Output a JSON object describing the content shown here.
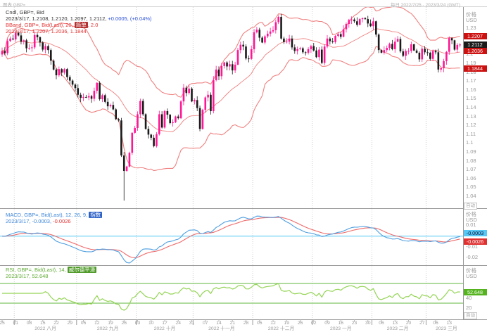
{
  "header": {
    "left_title": "图表 GBP=",
    "right_range": "每日 2022/7/25 - 2023/3/24 (GMT)"
  },
  "legends": {
    "main": {
      "line1": "Cndl, GBP=, Bid",
      "line2_ohlc": "2023/3/17, 1.2108, 1.2120, 1.2097, 1.2112, ",
      "line2_change": "+0.0005, (+0.04%)",
      "line3_pre": "BBand, GBP=, Bid(Last), 20, ",
      "line3_hl": "简单",
      "line3_post": ", 2.0",
      "line4": "2023/3/17, 1.2207, 1.2036, 1.1844"
    },
    "macd": {
      "line1_pre": "MACD, GBP=, Bid(Last), 12, 26, 9, ",
      "line1_hl": "指数",
      "line2_val1": "2023/3/17, -0.0003, ",
      "line2_val2": "-0.0026"
    },
    "rsi": {
      "line1_pre": "RSI, GBP=, Bid(Last), 14, ",
      "line1_hl": "威尔德平滑",
      "line2": "2023/3/17, 52.648"
    }
  },
  "axis": {
    "price_label": "价格",
    "unit": "USD",
    "auto_label": "自动",
    "price_badges": [
      {
        "value": "1.2207",
        "bg": "#cc1111",
        "fg": "#fff",
        "name": "bollinger-upper-badge"
      },
      {
        "value": "1.2112",
        "bg": "#1a1a1a",
        "fg": "#fff",
        "name": "last-price-badge"
      },
      {
        "value": "1.2036",
        "bg": "#cc1111",
        "fg": "#fff",
        "name": "bollinger-middle-badge"
      },
      {
        "value": "1.1844",
        "bg": "#cc1111",
        "fg": "#fff",
        "name": "bollinger-lower-badge"
      }
    ],
    "macd_badges": [
      {
        "value": "-0.0003",
        "bg": "#55c8f5",
        "fg": "#113",
        "name": "macd-line-badge"
      },
      {
        "value": "-0.0026",
        "bg": "#e03030",
        "fg": "#fff",
        "name": "macd-signal-badge"
      }
    ],
    "rsi_badge": {
      "value": "52.648",
      "bg": "#55b320",
      "fg": "#fff",
      "name": "rsi-value-badge"
    }
  },
  "colors": {
    "candle_up": "#ff1694",
    "candle_down": "#1a1a1a",
    "bollinger": "#f08080",
    "macd_line": "#4f9fe0",
    "macd_signal": "#ef6a6a",
    "macd_zero": "#54c8f2",
    "rsi_line": "#94d455",
    "rsi_threshold": "#62b73c",
    "grid": "#d0d0d0",
    "separator": "#9a9a9a"
  },
  "chart_data": {
    "type": "candlestick",
    "symbol": "GBP=",
    "interval": "daily",
    "title": "Cndl, GBP=, Bid",
    "last_candle": {
      "date": "2023/3/17",
      "open": 1.2108,
      "high": 1.212,
      "low": 1.2097,
      "close": 1.2112,
      "change": "+0.0005",
      "change_pct": "(+0.04%)"
    },
    "closes": [
      1.204,
      1.2015,
      1.2153,
      1.218,
      1.217,
      1.2245,
      1.2215,
      1.2145,
      1.216,
      1.207,
      1.2075,
      1.208,
      1.222,
      1.2195,
      1.2135,
      1.2055,
      1.2095,
      1.205,
      1.193,
      1.183,
      1.1765,
      1.1835,
      1.1795,
      1.1835,
      1.1745,
      1.1705,
      1.166,
      1.162,
      1.1545,
      1.151,
      1.152,
      1.1515,
      1.153,
      1.15,
      1.159,
      1.168,
      1.1495,
      1.154,
      1.1465,
      1.1415,
      1.143,
      1.138,
      1.127,
      1.1255,
      1.086,
      1.0685,
      1.0735,
      1.089,
      1.1115,
      1.117,
      1.1325,
      1.1475,
      1.1325,
      1.116,
      1.1095,
      1.106,
      1.0965,
      1.11,
      1.1325,
      1.1175,
      1.136,
      1.132,
      1.1225,
      1.1235,
      1.13,
      1.128,
      1.147,
      1.1625,
      1.1565,
      1.1615,
      1.147,
      1.1485,
      1.1395,
      1.116,
      1.1375,
      1.1515,
      1.1545,
      1.136,
      1.171,
      1.183,
      1.1755,
      1.187,
      1.191,
      1.1865,
      1.189,
      1.182,
      1.1885,
      1.205,
      1.211,
      1.209,
      1.1955,
      1.195,
      1.206,
      1.225,
      1.228,
      1.219,
      1.2135,
      1.2205,
      1.2235,
      1.226,
      1.2275,
      1.2365,
      1.2425,
      1.218,
      1.214,
      1.2145,
      1.218,
      1.208,
      1.204,
      1.206,
      1.207,
      1.2025,
      1.202,
      1.206,
      1.2095,
      1.2045,
      1.197,
      1.2055,
      1.1905,
      1.209,
      1.218,
      1.215,
      1.214,
      1.221,
      1.223,
      1.22,
      1.2285,
      1.2345,
      1.239,
      1.2395,
      1.2375,
      1.2335,
      1.24,
      1.241,
      1.24,
      1.235,
      1.232,
      1.2375,
      1.2225,
      1.205,
      1.202,
      1.205,
      1.2075,
      1.212,
      1.206,
      1.2145,
      1.2175,
      1.2035,
      1.1985,
      1.204,
      1.204,
      1.2115,
      1.2045,
      1.202,
      1.1945,
      1.2065,
      1.2025,
      1.202,
      1.195,
      1.204,
      1.2025,
      1.183,
      1.1845,
      1.1925,
      1.203,
      1.2185,
      1.216,
      1.2055,
      1.2108,
      1.2112
    ],
    "special_lows": {
      "45": 1.035
    },
    "month_start_indices": [
      5,
      28,
      50,
      71,
      93,
      115,
      137,
      157
    ],
    "month_labels": [
      "2022 八月",
      "2022 九月",
      "2022 十月",
      "2022 十一月",
      "2022 十二月",
      "2023 一月",
      "2023 二月",
      "2023 三月"
    ],
    "month_label_indices": [
      16,
      39,
      60,
      81,
      103,
      125,
      146,
      164
    ],
    "week_day_labels": [
      "25",
      "01",
      "08",
      "15",
      "22",
      "29",
      "05",
      "12",
      "19",
      "26",
      "03",
      "10",
      "17",
      "24",
      "31",
      "07",
      "14",
      "21",
      "28",
      "05",
      "12",
      "19",
      "26",
      "02",
      "09",
      "16",
      "23",
      "30",
      "06",
      "13",
      "20",
      "27",
      "06",
      "13"
    ],
    "indicators": {
      "bollinger": {
        "period": 20,
        "stdev": 2.0,
        "ma_type": "简单",
        "last_upper": 1.2207,
        "last_middle": 1.2036,
        "last_lower": 1.1844
      },
      "macd": {
        "fast": 12,
        "slow": 26,
        "signal": 9,
        "ma_type": "指数",
        "last_macd": -0.0003,
        "last_signal": -0.0026
      },
      "rsi": {
        "period": 14,
        "smoothing": "威尔德平滑",
        "last": 52.648,
        "overbought": 70,
        "oversold": 30
      }
    },
    "price_axis": {
      "ticks": [
        1.23,
        1.22,
        1.21,
        1.2,
        1.19,
        1.18,
        1.17,
        1.16,
        1.15,
        1.14,
        1.13,
        1.12,
        1.11,
        1.1,
        1.09,
        1.08,
        1.07,
        1.06,
        1.05,
        1.04
      ],
      "min": 1.028,
      "max": 1.252
    },
    "macd_axis": {
      "ticks": [
        0.01,
        -0.01,
        -0.02
      ],
      "min": -0.025,
      "max": 0.022
    },
    "rsi_axis": {
      "ticks": [
        40,
        20
      ],
      "min": 0,
      "max": 100
    }
  }
}
